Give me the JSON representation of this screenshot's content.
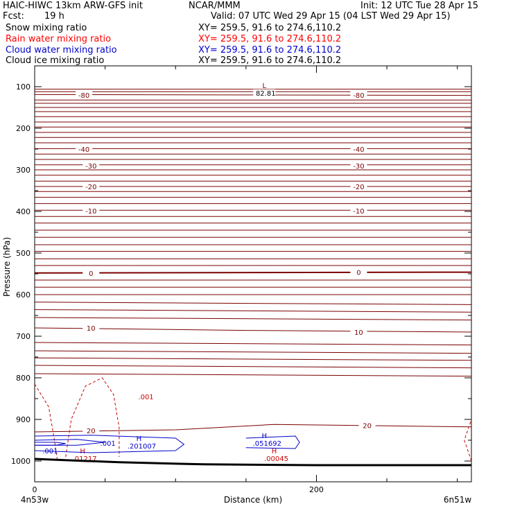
{
  "header": {
    "left_line1": "HAIC-HIWC 13km ARW-GFS init",
    "center_line1": "NCAR/MMM",
    "right_line1": "Init: 12 UTC Tue 28 Apr 15",
    "fcst_label": "Fcst:",
    "fcst_value": "19 h",
    "valid": "Valid: 07 UTC Wed 29 Apr 15 (04 LST Wed 29 Apr 15)",
    "fields": [
      {
        "name": "Snow mixing ratio",
        "xy": "XY= 259.5, 91.6 to 274.6,110.2",
        "color": "#000000"
      },
      {
        "name": "Rain water mixing ratio",
        "xy": "XY= 259.5, 91.6 to 274.6,110.2",
        "color": "#ff0000"
      },
      {
        "name": "Cloud water mixing ratio",
        "xy": "XY= 259.5, 91.6 to 274.6,110.2",
        "color": "#0000cc"
      },
      {
        "name": "Cloud ice mixing ratio",
        "xy": "XY= 259.5, 91.6 to 274.6,110.2",
        "color": "#000000"
      }
    ]
  },
  "chart_data": {
    "type": "line",
    "title": "",
    "xlabel": "Distance (km)",
    "ylabel": "Pressure (hPa)",
    "x_range": [
      0,
      310
    ],
    "y_range": [
      50,
      1050
    ],
    "x_ticks": [
      0,
      200
    ],
    "y_ticks": [
      100,
      200,
      300,
      400,
      500,
      600,
      700,
      800,
      900,
      1000
    ],
    "x_endpoint_labels": [
      "4n53w",
      "6n51w"
    ],
    "colors": {
      "temperature": "#7a0000",
      "rain": "#cc0000",
      "cloud_water": "#0000cc",
      "terrain": "#000000"
    },
    "temperature_isotherms": [
      {
        "label": "-80",
        "values": [
          [
            0,
            106
          ],
          [
            310,
            106
          ]
        ]
      },
      {
        "label": "-80",
        "values": [
          [
            0,
            119
          ],
          [
            310,
            121
          ]
        ]
      },
      {
        "label": "-40",
        "values": [
          [
            0,
            249
          ],
          [
            310,
            249
          ]
        ]
      },
      {
        "label": "-30",
        "values": [
          [
            0,
            288
          ],
          [
            310,
            288
          ]
        ]
      },
      {
        "label": "-20",
        "values": [
          [
            0,
            340
          ],
          [
            310,
            340
          ]
        ]
      },
      {
        "label": "-10",
        "values": [
          [
            0,
            397
          ],
          [
            310,
            397
          ]
        ]
      },
      {
        "label": "0",
        "values": [
          [
            0,
            548
          ],
          [
            310,
            546
          ]
        ]
      },
      {
        "label": "10",
        "values": [
          [
            0,
            680
          ],
          [
            150,
            686
          ],
          [
            310,
            690
          ]
        ]
      },
      {
        "label": "20",
        "values": [
          [
            0,
            930
          ],
          [
            100,
            925
          ],
          [
            170,
            912
          ],
          [
            310,
            918
          ]
        ]
      }
    ],
    "min_label": {
      "text": "L",
      "value": "82.81",
      "x": 163,
      "p": 113
    },
    "temperature_labels": [
      {
        "text": "-80",
        "x": 35,
        "p": 120
      },
      {
        "text": "-80",
        "x": 230,
        "p": 120
      },
      {
        "text": "-40",
        "x": 35,
        "p": 250
      },
      {
        "text": "-40",
        "x": 230,
        "p": 250
      },
      {
        "text": "-30",
        "x": 40,
        "p": 290
      },
      {
        "text": "-30",
        "x": 230,
        "p": 290
      },
      {
        "text": "-20",
        "x": 40,
        "p": 340
      },
      {
        "text": "-20",
        "x": 230,
        "p": 340
      },
      {
        "text": "-10",
        "x": 40,
        "p": 398
      },
      {
        "text": "-10",
        "x": 230,
        "p": 398
      },
      {
        "text": "0",
        "x": 40,
        "p": 548
      },
      {
        "text": "0",
        "x": 230,
        "p": 546
      },
      {
        "text": "10",
        "x": 40,
        "p": 680
      },
      {
        "text": "10",
        "x": 230,
        "p": 690
      },
      {
        "text": "20",
        "x": 40,
        "p": 927
      },
      {
        "text": "20",
        "x": 236,
        "p": 914
      }
    ],
    "rain_contours": [
      {
        "label": ".001",
        "values": [
          [
            0,
            815
          ],
          [
            10,
            870
          ],
          [
            14,
            950
          ],
          [
            16,
            995
          ]
        ]
      },
      {
        "label": ".001",
        "values": [
          [
            22,
            990
          ],
          [
            26,
            900
          ],
          [
            36,
            820
          ],
          [
            48,
            800
          ],
          [
            56,
            840
          ],
          [
            60,
            920
          ],
          [
            60,
            990
          ]
        ]
      },
      {
        "label": ".001",
        "values": [
          [
            310,
            1000
          ],
          [
            305,
            950
          ],
          [
            310,
            900
          ]
        ]
      }
    ],
    "rain_maxima": [
      {
        "text": "H",
        "value": ".01217",
        "x": 34,
        "p": 985
      },
      {
        "text": "H",
        "value": ".00045",
        "x": 170,
        "p": 985
      }
    ],
    "cloud_water_contours": [
      {
        "label": ".001",
        "values": [
          [
            0,
            940
          ],
          [
            40,
            938
          ],
          [
            100,
            945
          ],
          [
            106,
            960
          ],
          [
            100,
            975
          ],
          [
            40,
            980
          ],
          [
            0,
            975
          ]
        ]
      },
      {
        "label": ".001",
        "values": [
          [
            150,
            945
          ],
          [
            185,
            940
          ],
          [
            188,
            955
          ],
          [
            185,
            970
          ],
          [
            150,
            968
          ]
        ]
      }
    ],
    "cloud_water_maxima": [
      {
        "text": "H",
        "value": ".201007",
        "x": 74,
        "p": 955
      },
      {
        "text": "H",
        "value": ".051692",
        "x": 163,
        "p": 948
      }
    ],
    "cloud_water_labels": [
      {
        "text": ".001",
        "x": 11,
        "p": 982
      },
      {
        "text": ".001",
        "x": 52,
        "p": 963
      }
    ],
    "terrain": [
      [
        0,
        995
      ],
      [
        60,
        1003
      ],
      [
        120,
        1008
      ],
      [
        200,
        1010
      ],
      [
        310,
        1010
      ]
    ],
    "secondary_isotherm_labels": [
      {
        "text": ".001",
        "x": 79,
        "p": 852
      }
    ]
  }
}
